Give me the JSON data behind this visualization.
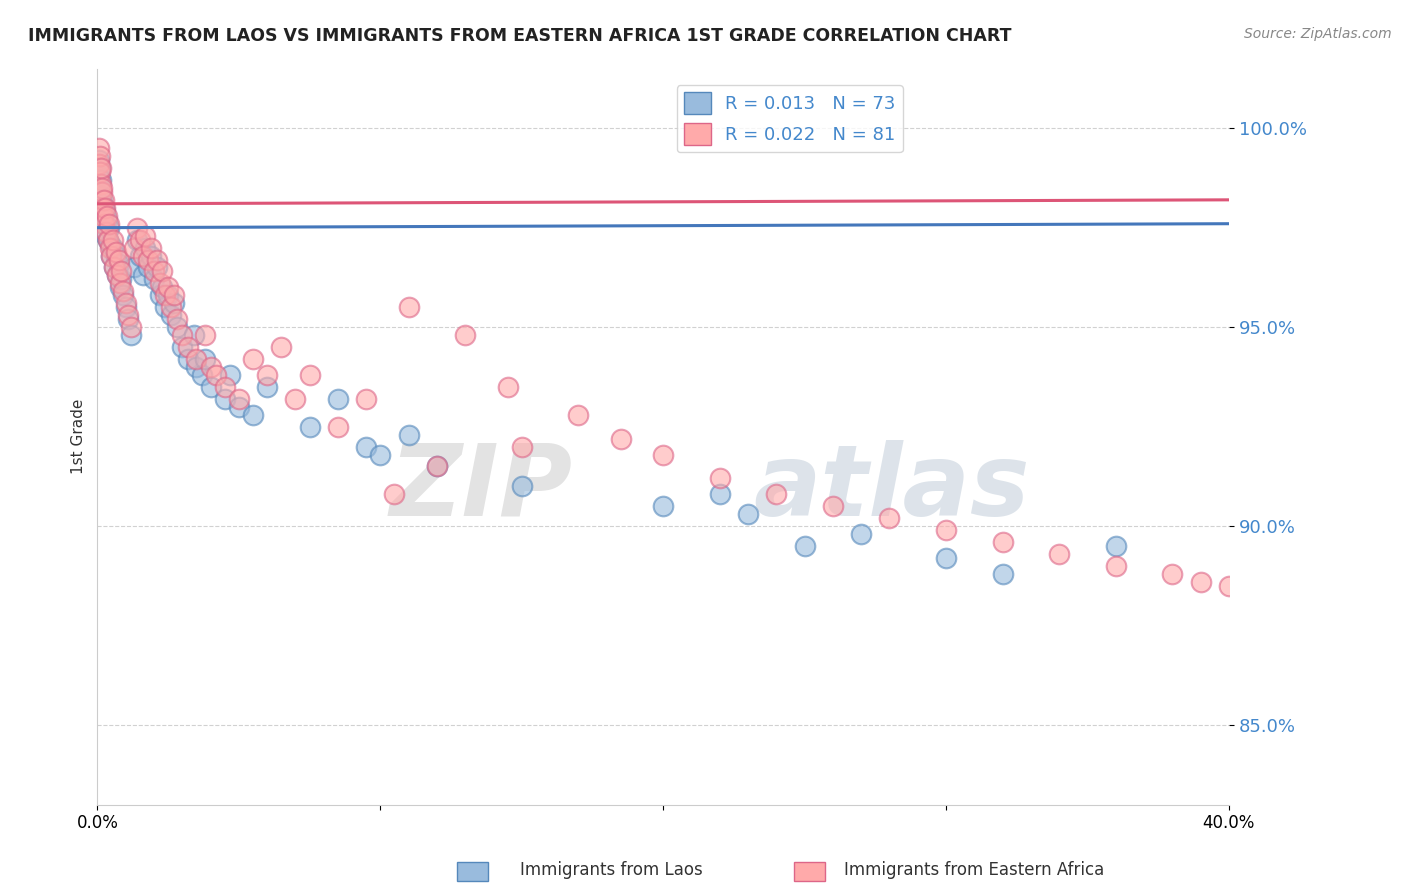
{
  "title": "IMMIGRANTS FROM LAOS VS IMMIGRANTS FROM EASTERN AFRICA 1ST GRADE CORRELATION CHART",
  "source": "Source: ZipAtlas.com",
  "ylabel": "1st Grade",
  "xlim": [
    0.0,
    40.0
  ],
  "ylim": [
    83.0,
    101.5
  ],
  "yticks": [
    85.0,
    90.0,
    95.0,
    100.0
  ],
  "ytick_labels": [
    "85.0%",
    "90.0%",
    "95.0%",
    "100.0%"
  ],
  "blue_label": "Immigrants from Laos",
  "pink_label": "Immigrants from Eastern Africa",
  "blue_R": 0.013,
  "blue_N": 73,
  "pink_R": 0.022,
  "pink_N": 81,
  "blue_color": "#99BBDD",
  "pink_color": "#FFAAAA",
  "blue_edge_color": "#5588BB",
  "pink_edge_color": "#DD6688",
  "blue_line_color": "#4477BB",
  "pink_line_color": "#DD5577",
  "watermark_zip": "ZIP",
  "watermark_atlas": "atlas",
  "blue_line_y0": 97.5,
  "blue_line_y1": 97.6,
  "pink_line_y0": 98.1,
  "pink_line_y1": 98.2,
  "blue_x": [
    0.05,
    0.07,
    0.08,
    0.1,
    0.12,
    0.13,
    0.15,
    0.17,
    0.18,
    0.2,
    0.22,
    0.25,
    0.28,
    0.3,
    0.35,
    0.38,
    0.4,
    0.45,
    0.5,
    0.55,
    0.6,
    0.65,
    0.7,
    0.75,
    0.8,
    0.85,
    0.9,
    1.0,
    1.1,
    1.2,
    1.3,
    1.4,
    1.5,
    1.6,
    1.7,
    1.8,
    1.9,
    2.0,
    2.1,
    2.2,
    2.3,
    2.4,
    2.5,
    2.6,
    2.7,
    2.8,
    3.0,
    3.2,
    3.4,
    3.5,
    3.7,
    3.8,
    4.0,
    4.5,
    4.7,
    5.0,
    5.5,
    6.0,
    7.5,
    8.5,
    9.5,
    10.0,
    11.0,
    12.0,
    15.0,
    20.0,
    22.0,
    23.0,
    25.0,
    27.0,
    30.0,
    32.0,
    36.0
  ],
  "blue_y": [
    99.2,
    98.8,
    99.0,
    98.5,
    98.3,
    98.7,
    98.1,
    97.8,
    98.2,
    97.6,
    98.0,
    97.5,
    97.9,
    97.3,
    97.7,
    97.2,
    97.5,
    97.1,
    96.8,
    97.0,
    96.5,
    96.8,
    96.3,
    96.6,
    96.0,
    96.2,
    95.8,
    95.5,
    95.2,
    94.8,
    96.5,
    97.2,
    96.8,
    96.3,
    97.0,
    96.5,
    96.8,
    96.2,
    96.5,
    95.8,
    96.0,
    95.5,
    95.8,
    95.3,
    95.6,
    95.0,
    94.5,
    94.2,
    94.8,
    94.0,
    93.8,
    94.2,
    93.5,
    93.2,
    93.8,
    93.0,
    92.8,
    93.5,
    92.5,
    93.2,
    92.0,
    91.8,
    92.3,
    91.5,
    91.0,
    90.5,
    90.8,
    90.3,
    89.5,
    89.8,
    89.2,
    88.8,
    89.5
  ],
  "pink_x": [
    0.05,
    0.07,
    0.08,
    0.1,
    0.12,
    0.13,
    0.15,
    0.17,
    0.18,
    0.2,
    0.22,
    0.25,
    0.28,
    0.3,
    0.35,
    0.38,
    0.4,
    0.45,
    0.5,
    0.55,
    0.6,
    0.65,
    0.7,
    0.75,
    0.8,
    0.85,
    0.9,
    1.0,
    1.1,
    1.2,
    1.3,
    1.4,
    1.5,
    1.6,
    1.7,
    1.8,
    1.9,
    2.0,
    2.1,
    2.2,
    2.3,
    2.4,
    2.5,
    2.6,
    2.7,
    2.8,
    3.0,
    3.2,
    3.5,
    3.8,
    4.0,
    4.2,
    4.5,
    5.0,
    5.5,
    6.0,
    6.5,
    7.0,
    7.5,
    8.5,
    9.5,
    11.0,
    13.0,
    14.5,
    17.0,
    18.5,
    20.0,
    22.0,
    24.0,
    26.0,
    28.0,
    30.0,
    32.0,
    34.0,
    36.0,
    38.0,
    39.0,
    40.0,
    10.5,
    12.0,
    15.0
  ],
  "pink_y": [
    99.5,
    99.1,
    99.3,
    98.9,
    98.6,
    99.0,
    98.4,
    98.0,
    98.5,
    97.8,
    98.2,
    97.6,
    98.0,
    97.4,
    97.8,
    97.2,
    97.6,
    97.0,
    96.8,
    97.2,
    96.5,
    96.9,
    96.3,
    96.7,
    96.1,
    96.4,
    95.9,
    95.6,
    95.3,
    95.0,
    97.0,
    97.5,
    97.2,
    96.8,
    97.3,
    96.7,
    97.0,
    96.4,
    96.7,
    96.1,
    96.4,
    95.8,
    96.0,
    95.5,
    95.8,
    95.2,
    94.8,
    94.5,
    94.2,
    94.8,
    94.0,
    93.8,
    93.5,
    93.2,
    94.2,
    93.8,
    94.5,
    93.2,
    93.8,
    92.5,
    93.2,
    95.5,
    94.8,
    93.5,
    92.8,
    92.2,
    91.8,
    91.2,
    90.8,
    90.5,
    90.2,
    89.9,
    89.6,
    89.3,
    89.0,
    88.8,
    88.6,
    88.5,
    90.8,
    91.5,
    92.0
  ]
}
